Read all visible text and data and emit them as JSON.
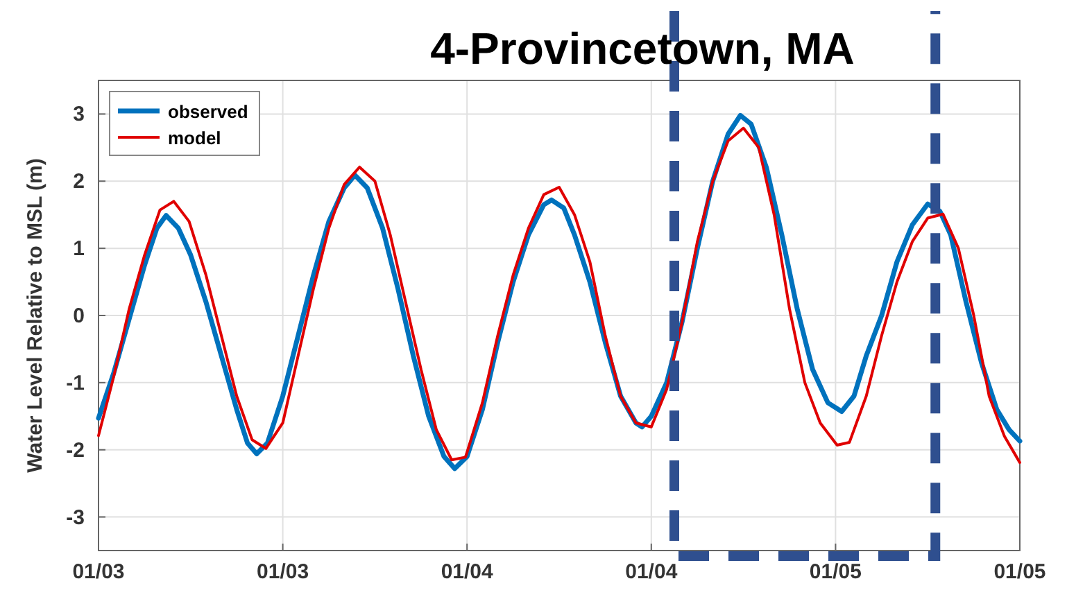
{
  "chart_data": {
    "type": "line",
    "title": "4-Provincetown, MA",
    "ylabel": "Water Level Relative to MSL (m)",
    "xlim": [
      "--01-03T00:00",
      "--01-05T12:00"
    ],
    "xticks": [
      {
        "value": "--01-03T00:00",
        "label": "01/03"
      },
      {
        "value": "--01-03T12:00",
        "label": "01/03"
      },
      {
        "value": "--01-04T00:00",
        "label": "01/04"
      },
      {
        "value": "--01-04T12:00",
        "label": "01/04"
      },
      {
        "value": "--01-05T00:00",
        "label": "01/05"
      },
      {
        "value": "--01-05T12:00",
        "label": "01/05"
      }
    ],
    "ylim": [
      -3.5,
      3.5
    ],
    "yticks": [
      -3,
      -2,
      -1,
      0,
      1,
      2,
      3
    ],
    "grid": true,
    "legend": "top left",
    "series": [
      {
        "name": "observed",
        "color": "#0072bd",
        "x": [
          "--01-03T00:00",
          "--01-03T01:00",
          "--01-03T02:00",
          "--01-03T03:00",
          "--01-03T03:48",
          "--01-03T04:24",
          "--01-03T05:12",
          "--01-03T06:00",
          "--01-03T07:00",
          "--01-03T08:00",
          "--01-03T09:00",
          "--01-03T09:42",
          "--01-03T10:18",
          "--01-03T11:00",
          "--01-03T12:00",
          "--01-03T13:00",
          "--01-03T14:00",
          "--01-03T15:00",
          "--01-03T16:00",
          "--01-03T16:42",
          "--01-03T17:30",
          "--01-03T18:30",
          "--01-03T19:30",
          "--01-03T20:30",
          "--01-03T21:30",
          "--01-03T22:30",
          "--01-03T23:12",
          "--01-04T00:00",
          "--01-04T01:00",
          "--01-04T02:00",
          "--01-04T03:00",
          "--01-04T04:00",
          "--01-04T05:00",
          "--01-04T05:30",
          "--01-04T06:18",
          "--01-04T07:00",
          "--01-04T08:00",
          "--01-04T09:00",
          "--01-04T10:00",
          "--01-04T11:00",
          "--01-04T11:24",
          "--01-04T12:00",
          "--01-04T13:00",
          "--01-04T14:00",
          "--01-04T15:00",
          "--01-04T16:00",
          "--01-04T17:00",
          "--01-04T17:48",
          "--01-04T18:30",
          "--01-04T19:30",
          "--01-04T20:30",
          "--01-04T21:30",
          "--01-04T22:30",
          "--01-04T23:30",
          "--01-05T00:24",
          "--01-05T01:12",
          "--01-05T02:00",
          "--01-05T03:00",
          "--01-05T04:00",
          "--01-05T05:00",
          "--01-05T06:00",
          "--01-05T06:48",
          "--01-05T07:30",
          "--01-05T08:30",
          "--01-05T09:30",
          "--01-05T10:30",
          "--01-05T11:18",
          "--01-05T12:00"
        ],
        "values": [
          -1.53,
          -0.85,
          -0.05,
          0.75,
          1.3,
          1.49,
          1.3,
          0.9,
          0.2,
          -0.6,
          -1.4,
          -1.9,
          -2.06,
          -1.9,
          -1.2,
          -0.3,
          0.6,
          1.4,
          1.9,
          2.09,
          1.9,
          1.3,
          0.4,
          -0.6,
          -1.5,
          -2.1,
          -2.28,
          -2.1,
          -1.4,
          -0.4,
          0.5,
          1.2,
          1.65,
          1.72,
          1.6,
          1.2,
          0.5,
          -0.4,
          -1.2,
          -1.6,
          -1.66,
          -1.5,
          -1.0,
          -0.1,
          1.0,
          2.0,
          2.7,
          2.98,
          2.85,
          2.2,
          1.2,
          0.1,
          -0.8,
          -1.3,
          -1.43,
          -1.2,
          -0.6,
          0.0,
          0.8,
          1.35,
          1.66,
          1.55,
          1.2,
          0.2,
          -0.7,
          -1.4,
          -1.7,
          -1.87
        ]
      },
      {
        "name": "model",
        "color": "#e00000",
        "x": [
          "--01-03T00:00",
          "--01-03T01:00",
          "--01-03T02:00",
          "--01-03T03:00",
          "--01-03T04:00",
          "--01-03T04:54",
          "--01-03T05:54",
          "--01-03T07:00",
          "--01-03T08:00",
          "--01-03T09:00",
          "--01-03T10:00",
          "--01-03T10:54",
          "--01-03T12:00",
          "--01-03T13:00",
          "--01-03T14:00",
          "--01-03T15:00",
          "--01-03T16:00",
          "--01-03T17:00",
          "--01-03T18:00",
          "--01-03T19:00",
          "--01-03T20:00",
          "--01-03T21:00",
          "--01-03T22:00",
          "--01-03T23:00",
          "--01-03T23:54",
          "--01-04T01:00",
          "--01-04T02:00",
          "--01-04T03:00",
          "--01-04T04:00",
          "--01-04T05:00",
          "--01-04T06:00",
          "--01-04T07:00",
          "--01-04T08:00",
          "--01-04T09:00",
          "--01-04T10:00",
          "--01-04T11:00",
          "--01-04T12:00",
          "--01-04T13:00",
          "--01-04T14:00",
          "--01-04T15:00",
          "--01-04T16:00",
          "--01-04T17:00",
          "--01-04T18:00",
          "--01-04T19:00",
          "--01-04T20:00",
          "--01-04T21:00",
          "--01-04T22:00",
          "--01-04T23:00",
          "--01-05T00:06",
          "--01-05T00:54",
          "--01-05T02:00",
          "--01-05T03:00",
          "--01-05T04:00",
          "--01-05T05:00",
          "--01-05T06:00",
          "--01-05T07:00",
          "--01-05T08:00",
          "--01-05T09:00",
          "--01-05T10:00",
          "--01-05T11:00",
          "--01-05T12:00"
        ],
        "values": [
          -1.79,
          -0.9,
          0.1,
          0.9,
          1.57,
          1.7,
          1.4,
          0.6,
          -0.3,
          -1.2,
          -1.85,
          -1.98,
          -1.6,
          -0.6,
          0.4,
          1.3,
          1.95,
          2.21,
          2.0,
          1.2,
          0.2,
          -0.8,
          -1.7,
          -2.15,
          -2.11,
          -1.3,
          -0.3,
          0.6,
          1.3,
          1.8,
          1.91,
          1.5,
          0.8,
          -0.3,
          -1.2,
          -1.6,
          -1.66,
          -1.1,
          -0.1,
          1.1,
          2.0,
          2.6,
          2.79,
          2.5,
          1.5,
          0.1,
          -1.0,
          -1.6,
          -1.93,
          -1.89,
          -1.2,
          -0.3,
          0.5,
          1.1,
          1.45,
          1.51,
          1.0,
          0.0,
          -1.2,
          -1.8,
          -2.19
        ]
      }
    ]
  }
}
